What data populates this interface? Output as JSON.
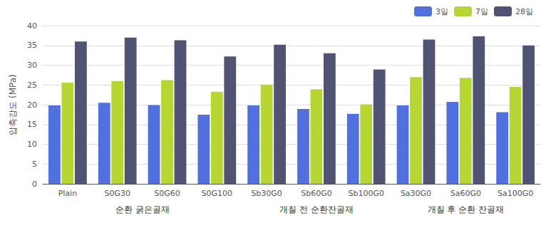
{
  "chart_data": {
    "type": "bar",
    "categories": [
      "Plain",
      "S0G30",
      "S0G60",
      "S0G100",
      "Sb30G0",
      "Sb60G0",
      "Sb100G0",
      "Sa30G0",
      "Sa60G0",
      "Sa100G0"
    ],
    "series": [
      {
        "name": "3일",
        "values": [
          19.8,
          20.5,
          19.9,
          17.5,
          19.8,
          18.9,
          17.7,
          19.8,
          20.7,
          18.1
        ]
      },
      {
        "name": "7일",
        "values": [
          25.6,
          26.0,
          26.2,
          23.3,
          25.1,
          23.9,
          20.1,
          27.0,
          26.8,
          24.5
        ]
      },
      {
        "name": "28일",
        "values": [
          36.0,
          37.0,
          36.3,
          32.2,
          35.2,
          33.0,
          28.9,
          36.5,
          37.3,
          35.0
        ]
      }
    ],
    "ylabel": "압축강도 (MPa)",
    "ylim": [
      0,
      40
    ],
    "yticks": [
      0,
      5,
      10,
      15,
      20,
      25,
      30,
      35,
      40
    ],
    "grid": true,
    "legend": "upper right",
    "annotations": [
      {
        "text": "순환 굵은골재",
        "from": "Plain",
        "to": "S0G100"
      },
      {
        "text": "개질 전 순환잔골재",
        "from": "Sb30G0",
        "to": "Sb100G0"
      },
      {
        "text": "개질 후 순환 잔골재",
        "from": "Sa30G0",
        "to": "Sa100G0"
      }
    ]
  }
}
